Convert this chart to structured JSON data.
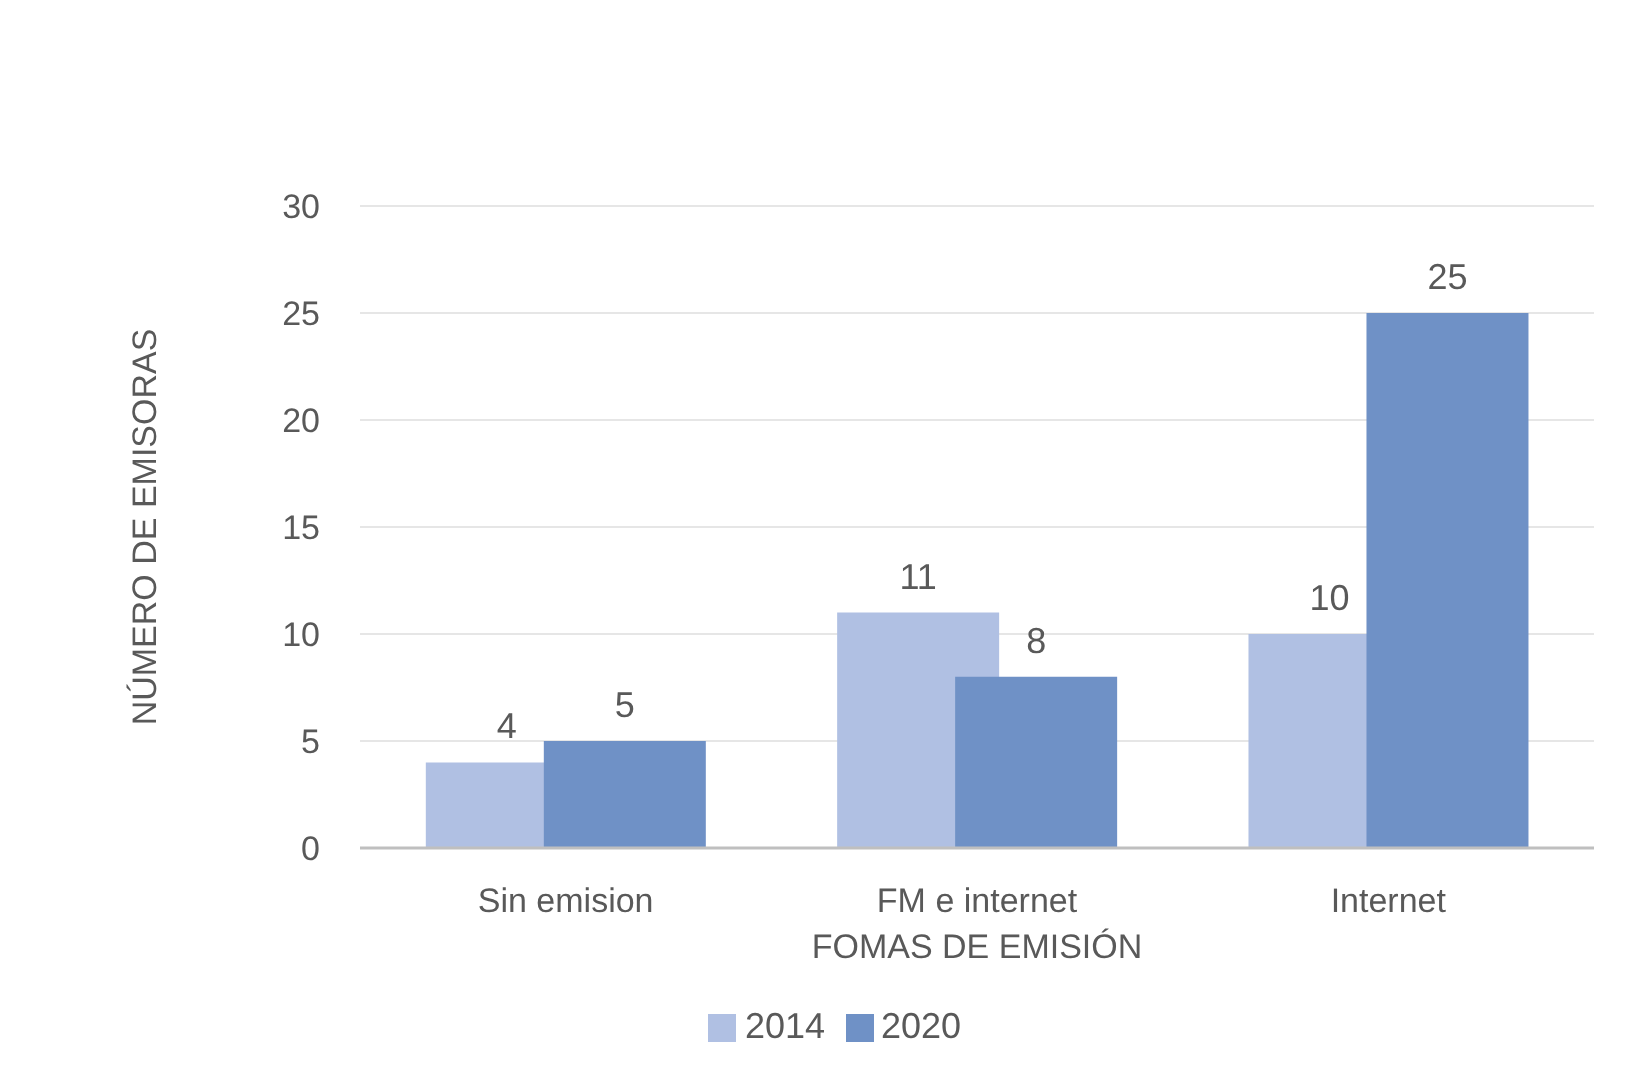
{
  "chart_data": {
    "type": "bar",
    "xlabel": "FOMAS DE EMISIÓN",
    "ylabel": "NÚMERO DE EMISORAS",
    "categories": [
      "Sin emision",
      "FM e internet",
      "Internet"
    ],
    "series": [
      {
        "name": "2014",
        "color": "#b0c0e3",
        "values": [
          4,
          11,
          10
        ]
      },
      {
        "name": "2020",
        "color": "#6f91c6",
        "values": [
          5,
          8,
          25
        ]
      }
    ],
    "ylim": [
      0,
      30
    ],
    "yticks": [
      0,
      5,
      10,
      15,
      20,
      25,
      30
    ],
    "grid": "y",
    "legend": "bottom",
    "data_labels": true
  }
}
